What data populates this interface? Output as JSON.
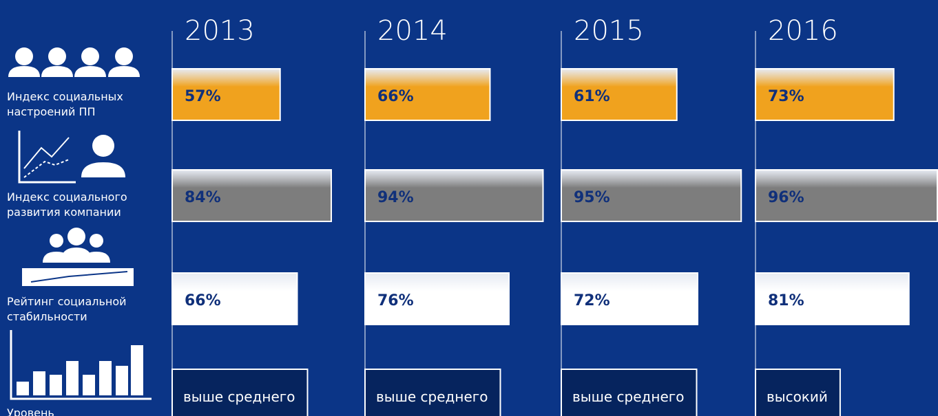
{
  "chart_data": {
    "type": "bar",
    "categories": [
      "2013",
      "2014",
      "2015",
      "2016"
    ],
    "xlim": [
      0,
      100
    ],
    "series": [
      {
        "name": "Индекс социальных настроений ПП",
        "color": "#f0a21e",
        "values": [
          57,
          66,
          61,
          73
        ],
        "value_labels": [
          "57%",
          "66%",
          "61%",
          "73%"
        ]
      },
      {
        "name": "Индекс социального развития компании",
        "color": "#7d7d7d",
        "values": [
          84,
          94,
          95,
          96
        ],
        "value_labels": [
          "84%",
          "94%",
          "95%",
          "96%"
        ]
      },
      {
        "name": "Рейтинг социальной стабильности",
        "color": "#ffffff",
        "values": [
          66,
          76,
          72,
          81
        ],
        "value_labels": [
          "66%",
          "76%",
          "72%",
          "81%"
        ]
      }
    ],
    "level": {
      "name": "Уровень",
      "values": [
        "выше среднего",
        "выше среднего",
        "выше среднего",
        "высокий"
      ]
    }
  }
}
